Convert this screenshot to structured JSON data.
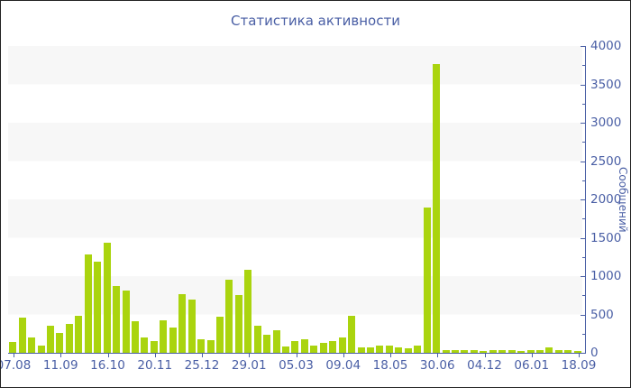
{
  "title": "Статистика активности",
  "y_axis": {
    "label": "Сообщений",
    "tick_labels": [
      "4000",
      "3500",
      "3000",
      "2500",
      "2000",
      "1500",
      "1000",
      "500",
      "0"
    ]
  },
  "x_axis": {
    "tick_labels": [
      "07.08",
      "11.09",
      "16.10",
      "20.11",
      "25.12",
      "29.01",
      "05.03",
      "09.04",
      "18.05",
      "30.06",
      "04.12",
      "06.01",
      "18.09"
    ]
  },
  "chart_data": {
    "type": "bar",
    "title": "Статистика активности",
    "xlabel": "",
    "ylabel": "Сообщений",
    "ylim": [
      0,
      4000
    ],
    "y_tick_step": 500,
    "y_minor_tick_step": 250,
    "grid": "alternating horizontal bands",
    "legend": "none",
    "categories": [
      "07.08",
      "11.09",
      "16.10",
      "20.11",
      "25.12",
      "29.01",
      "05.03",
      "09.04",
      "18.05",
      "30.06",
      "04.12",
      "06.01",
      "18.09"
    ],
    "bars_per_category_interval": 5,
    "values": [
      140,
      460,
      200,
      100,
      350,
      260,
      380,
      480,
      1280,
      1190,
      1430,
      870,
      810,
      410,
      200,
      150,
      420,
      330,
      765,
      695,
      175,
      165,
      470,
      950,
      750,
      1080,
      350,
      230,
      300,
      85,
      150,
      175,
      100,
      125,
      155,
      195,
      480,
      65,
      70,
      90,
      95,
      75,
      55,
      95,
      1900,
      3770,
      40,
      30,
      35,
      30,
      25,
      30,
      35,
      30,
      25,
      30,
      35,
      70,
      35,
      30,
      25
    ],
    "colors": {
      "bar": "#aad40e",
      "axis": "#4a5fa5",
      "text": "#4a5fa5",
      "stripe": "#f7f7f7",
      "background": "#ffffff",
      "frame_border": "#222222"
    }
  }
}
